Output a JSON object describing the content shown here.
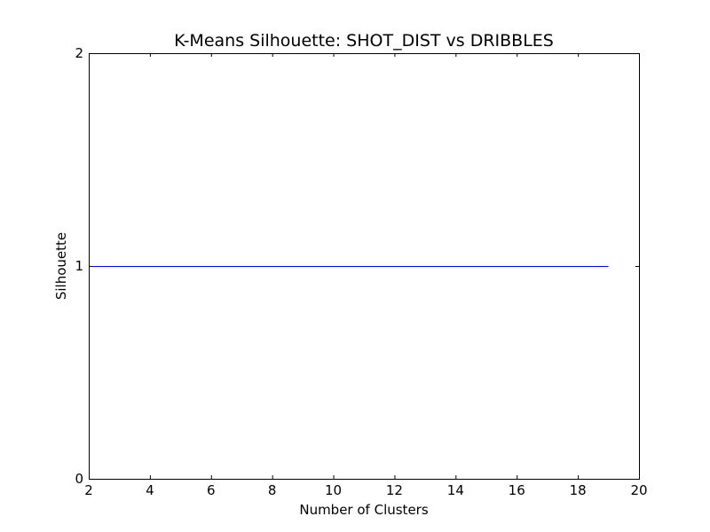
{
  "chart_data": {
    "type": "line",
    "title": "K-Means Silhouette: SHOT_DIST vs DRIBBLES",
    "xlabel": "Number of Clusters",
    "ylabel": "Silhouette",
    "xlim": [
      2,
      20
    ],
    "ylim": [
      0,
      2
    ],
    "xticks": [
      2,
      4,
      6,
      8,
      10,
      12,
      14,
      16,
      18,
      20
    ],
    "yticks": [
      0,
      1,
      2
    ],
    "grid": false,
    "series": [
      {
        "x": [
          2,
          3,
          4,
          5,
          6,
          7,
          8,
          9,
          10,
          11,
          12,
          13,
          14,
          15,
          16,
          17,
          18,
          19
        ],
        "y": [
          1,
          1,
          1,
          1,
          1,
          1,
          1,
          1,
          1,
          1,
          1,
          1,
          1,
          1,
          1,
          1,
          1,
          1
        ],
        "color": "#0000ff"
      }
    ]
  }
}
